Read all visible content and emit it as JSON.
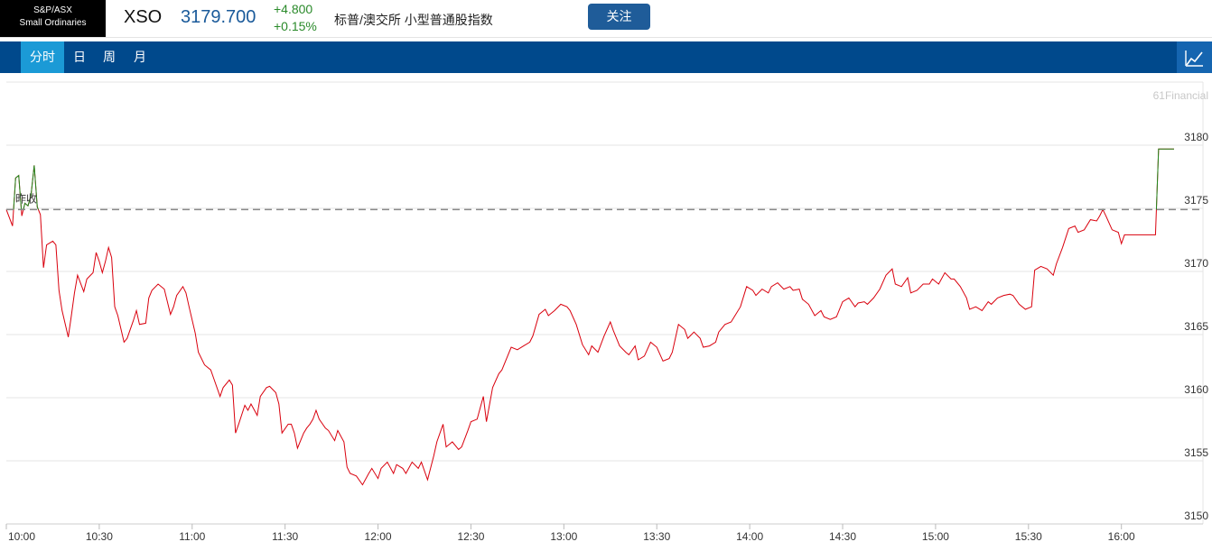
{
  "header": {
    "index_name": [
      "S&P/ASX",
      "Small Ordinaries"
    ],
    "symbol": "XSO",
    "price": "3179.700",
    "change": "+4.800",
    "change_pct": "+0.15%",
    "name": "标普/澳交所 小型普通股指数",
    "button": "关注"
  },
  "tabs": [
    "分时",
    "日",
    "周",
    "月"
  ],
  "watermark": "61Financial",
  "chart_data": {
    "type": "line",
    "x": [
      "10:00",
      "10:02",
      "10:03",
      "10:04",
      "10:05",
      "10:06",
      "10:07",
      "10:08",
      "10:09",
      "10:10",
      "10:11",
      "10:12",
      "10:13",
      "10:15",
      "10:16",
      "10:17",
      "10:18",
      "10:20",
      "10:21",
      "10:22",
      "10:23",
      "10:25",
      "10:26",
      "10:28",
      "10:29",
      "10:30",
      "10:31",
      "10:32",
      "10:33",
      "10:34",
      "10:35",
      "10:36",
      "10:38",
      "10:39",
      "10:41",
      "10:42",
      "10:43",
      "10:45",
      "10:46",
      "10:47",
      "10:49",
      "10:51",
      "10:53",
      "10:54",
      "10:55",
      "10:57",
      "10:58",
      "10:59",
      "11:01",
      "11:02",
      "11:04",
      "11:06",
      "11:07",
      "11:09",
      "11:10",
      "11:12",
      "11:13",
      "11:14",
      "11:15",
      "11:17",
      "11:18",
      "11:19",
      "11:21",
      "11:22",
      "11:24",
      "11:25",
      "11:27",
      "11:28",
      "11:29",
      "11:31",
      "11:32",
      "11:33",
      "11:34",
      "11:36",
      "11:37",
      "11:38",
      "11:39",
      "11:40",
      "11:41",
      "11:43",
      "11:44",
      "11:46",
      "11:47",
      "11:49",
      "11:50",
      "11:51",
      "11:53",
      "11:55",
      "11:57",
      "11:58",
      "12:00",
      "12:01",
      "12:03",
      "12:05",
      "12:06",
      "12:08",
      "12:09",
      "12:11",
      "12:13",
      "12:14",
      "12:16",
      "12:18",
      "12:19",
      "12:21",
      "12:22",
      "12:24",
      "12:26",
      "12:27",
      "12:29",
      "12:30",
      "12:32",
      "12:34",
      "12:35",
      "12:37",
      "12:39",
      "12:40",
      "12:42",
      "12:43",
      "12:45",
      "12:47",
      "12:49",
      "12:50",
      "12:52",
      "12:54",
      "12:55",
      "12:57",
      "12:59",
      "13:01",
      "13:02",
      "13:04",
      "13:06",
      "13:08",
      "13:09",
      "13:11",
      "13:13",
      "13:15",
      "13:16",
      "13:18",
      "13:20",
      "13:21",
      "13:23",
      "13:24",
      "13:26",
      "13:28",
      "13:30",
      "13:32",
      "13:34",
      "13:35",
      "13:37",
      "13:39",
      "13:40",
      "13:42",
      "13:44",
      "13:45",
      "13:47",
      "13:49",
      "13:50",
      "13:52",
      "13:54",
      "13:55",
      "13:57",
      "13:59",
      "14:01",
      "14:02",
      "14:04",
      "14:06",
      "14:07",
      "14:09",
      "14:11",
      "14:13",
      "14:14",
      "14:16",
      "14:17",
      "14:19",
      "14:21",
      "14:23",
      "14:24",
      "14:26",
      "14:28",
      "14:30",
      "14:32",
      "14:34",
      "14:35",
      "14:37",
      "14:38",
      "14:40",
      "14:42",
      "14:44",
      "14:46",
      "14:47",
      "14:49",
      "14:51",
      "14:52",
      "14:54",
      "14:56",
      "14:58",
      "14:59",
      "15:01",
      "15:03",
      "15:05",
      "15:06",
      "15:08",
      "15:10",
      "15:11",
      "15:13",
      "15:15",
      "15:17",
      "15:18",
      "15:20",
      "15:22",
      "15:24",
      "15:25",
      "15:27",
      "15:29",
      "15:31",
      "15:32",
      "15:34",
      "15:36",
      "15:38",
      "15:39",
      "15:41",
      "15:43",
      "15:45",
      "15:46",
      "15:48",
      "15:50",
      "15:52",
      "15:53",
      "15:54",
      "15:55",
      "15:57",
      "15:59",
      "16:00",
      "16:01",
      "16:05",
      "16:11",
      "16:12",
      "16:17"
    ],
    "values": [
      3174.9,
      3173.6,
      3177.4,
      3177.6,
      3174.4,
      3175.4,
      3175.2,
      3176.1,
      3178.4,
      3175.1,
      3174.5,
      3170.3,
      3172.1,
      3172.4,
      3172.1,
      3168.5,
      3166.9,
      3164.8,
      3166.5,
      3168.3,
      3169.7,
      3168.4,
      3169.4,
      3169.9,
      3171.5,
      3170.8,
      3169.9,
      3170.8,
      3171.9,
      3171.1,
      3167.2,
      3166.5,
      3164.4,
      3164.7,
      3166.1,
      3166.9,
      3165.8,
      3165.9,
      3167.9,
      3168.5,
      3169.0,
      3168.6,
      3166.6,
      3167.2,
      3168.1,
      3168.8,
      3168.3,
      3167.2,
      3165.1,
      3163.6,
      3162.6,
      3162.2,
      3161.5,
      3160.1,
      3160.8,
      3161.4,
      3161.0,
      3157.2,
      3157.9,
      3159.4,
      3159.0,
      3159.5,
      3158.6,
      3160.1,
      3160.8,
      3160.9,
      3160.4,
      3159.5,
      3157.2,
      3157.9,
      3157.9,
      3157.2,
      3156.0,
      3157.2,
      3157.6,
      3157.9,
      3158.3,
      3159.0,
      3158.3,
      3157.6,
      3157.4,
      3156.6,
      3157.4,
      3156.5,
      3154.5,
      3154.0,
      3153.8,
      3153.1,
      3154.0,
      3154.4,
      3153.6,
      3154.4,
      3154.9,
      3154.0,
      3154.7,
      3154.4,
      3154.0,
      3154.9,
      3154.4,
      3154.9,
      3153.5,
      3155.4,
      3156.5,
      3157.9,
      3156.1,
      3156.5,
      3155.9,
      3156.1,
      3157.4,
      3158.1,
      3158.3,
      3160.1,
      3158.1,
      3160.8,
      3161.9,
      3162.2,
      3163.4,
      3164.0,
      3163.8,
      3164.1,
      3164.4,
      3164.9,
      3166.6,
      3167.0,
      3166.5,
      3166.9,
      3167.4,
      3167.2,
      3166.9,
      3165.8,
      3164.2,
      3163.4,
      3164.1,
      3163.6,
      3164.9,
      3166.0,
      3165.3,
      3164.1,
      3163.6,
      3163.4,
      3164.1,
      3163.0,
      3163.3,
      3164.4,
      3164.0,
      3162.9,
      3163.1,
      3163.6,
      3165.8,
      3165.4,
      3164.7,
      3165.2,
      3164.7,
      3164.0,
      3164.1,
      3164.4,
      3165.2,
      3165.8,
      3166.0,
      3166.4,
      3167.2,
      3168.8,
      3168.5,
      3168.1,
      3168.6,
      3168.3,
      3168.8,
      3169.1,
      3168.6,
      3168.8,
      3168.5,
      3168.6,
      3167.8,
      3167.4,
      3166.5,
      3166.9,
      3166.4,
      3166.2,
      3166.4,
      3167.6,
      3167.9,
      3167.2,
      3167.5,
      3167.6,
      3167.4,
      3167.9,
      3168.6,
      3169.7,
      3170.2,
      3169.0,
      3168.8,
      3169.5,
      3168.3,
      3168.5,
      3169.0,
      3169.0,
      3169.4,
      3169.0,
      3169.9,
      3169.4,
      3169.4,
      3168.8,
      3167.9,
      3167.0,
      3167.2,
      3166.9,
      3167.6,
      3167.4,
      3167.9,
      3168.1,
      3168.2,
      3168.1,
      3167.4,
      3167.0,
      3167.2,
      3170.1,
      3170.4,
      3170.2,
      3169.7,
      3170.6,
      3171.9,
      3173.4,
      3173.6,
      3173.1,
      3173.3,
      3174.1,
      3174.0,
      3174.4,
      3174.9,
      3174.4,
      3173.3,
      3173.1,
      3172.2,
      3172.9,
      3172.9,
      3172.9,
      3179.7,
      3179.7
    ],
    "color": "#d9000d",
    "color_above": "#1e8a1e",
    "prev_close": {
      "label": "昨收",
      "value": 3174.9
    },
    "xlim": [
      "10:00",
      "16:17"
    ],
    "xticks": [
      "10:00",
      "10:30",
      "11:00",
      "11:30",
      "12:00",
      "12:30",
      "13:00",
      "13:30",
      "14:00",
      "14:30",
      "15:00",
      "15:30",
      "16:00"
    ],
    "ylim": [
      3150,
      3185
    ],
    "yticks": [
      3150,
      3155,
      3160,
      3165,
      3170,
      3175,
      3180
    ],
    "grid": true
  }
}
